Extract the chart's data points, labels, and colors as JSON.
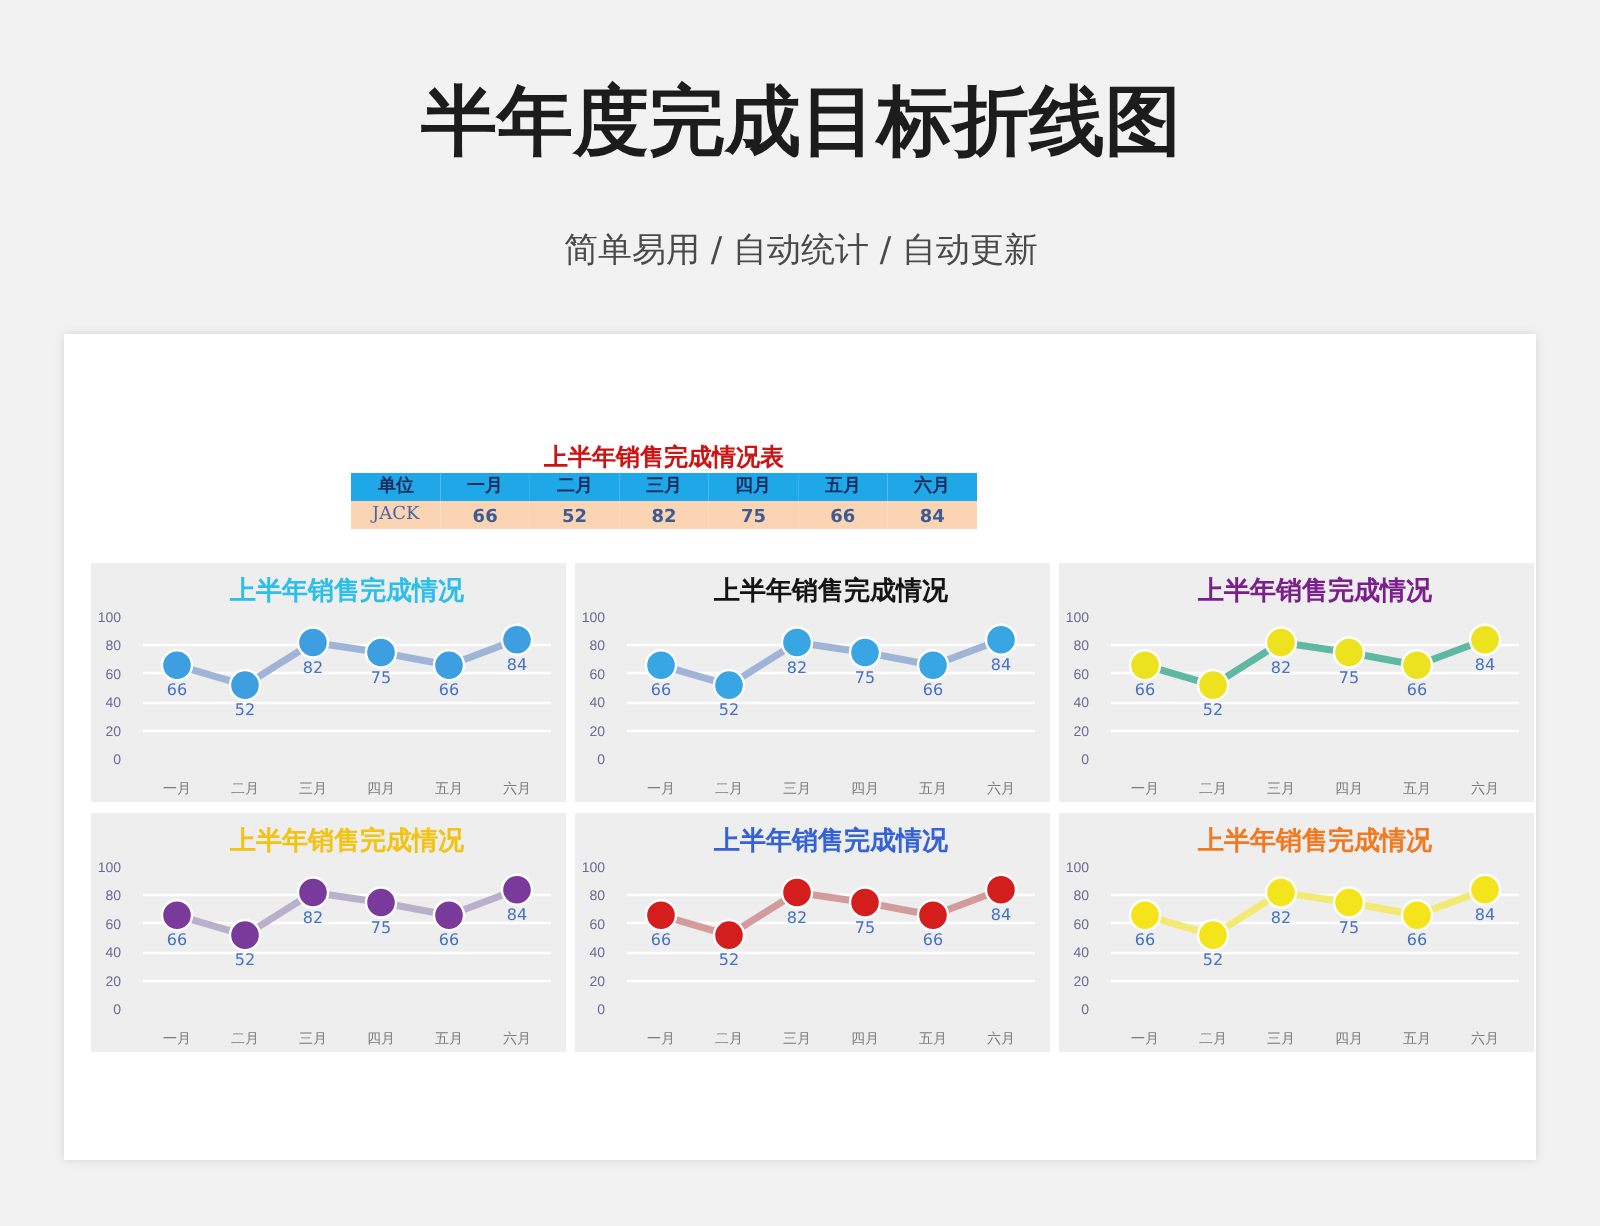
{
  "chart_data": [
    {
      "type": "other",
      "title": "半年度完成目标折线图",
      "subtitle": "简单易用 / 自动统计 / 自动更新"
    },
    {
      "type": "other",
      "title": "上半年销售完成情况表",
      "annotations": [
        "单位"
      ],
      "categories": [
        "一月",
        "二月",
        "三月",
        "四月",
        "五月",
        "六月"
      ],
      "series": [
        {
          "name": "JACK",
          "values": [
            66,
            52,
            82,
            75,
            66,
            84
          ]
        }
      ],
      "data_labels": true
    },
    {
      "type": "line",
      "title": "上半年销售完成情况",
      "categories": [
        "一月",
        "二月",
        "三月",
        "四月",
        "五月",
        "六月"
      ],
      "series": [
        {
          "color": "#9fb4d6",
          "colors": [
            "#3d9fe0",
            "#3d9fe0",
            "#3d9fe0",
            "#3d9fe0",
            "#3d9fe0",
            "#3d9fe0"
          ],
          "values": [
            66,
            52,
            82,
            75,
            66,
            84
          ]
        }
      ],
      "ylim": [
        0,
        100
      ],
      "yticks": [
        0,
        20,
        40,
        60,
        80,
        100
      ],
      "grid": "y",
      "marker": "circle",
      "data_labels": true
    },
    {
      "type": "line",
      "title": "上半年销售完成情况",
      "categories": [
        "一月",
        "二月",
        "三月",
        "四月",
        "五月",
        "六月"
      ],
      "series": [
        {
          "color": "#9fb4d6",
          "colors": [
            "#38a6e2",
            "#38a6e2",
            "#38a6e2",
            "#38a6e2",
            "#38a6e2",
            "#38a6e2"
          ],
          "values": [
            66,
            52,
            82,
            75,
            66,
            84
          ]
        }
      ],
      "ylim": [
        0,
        100
      ],
      "yticks": [
        0,
        20,
        40,
        60,
        80,
        100
      ],
      "grid": "y",
      "marker": "circle",
      "data_labels": true
    },
    {
      "type": "line",
      "title": "上半年销售完成情况",
      "categories": [
        "一月",
        "二月",
        "三月",
        "四月",
        "五月",
        "六月"
      ],
      "series": [
        {
          "color": "#5fb8a2",
          "colors": [
            "#ece21e",
            "#ece21e",
            "#ece21e",
            "#ece21e",
            "#ece21e",
            "#ece21e"
          ],
          "values": [
            66,
            52,
            82,
            75,
            66,
            84
          ]
        }
      ],
      "ylim": [
        0,
        100
      ],
      "yticks": [
        0,
        20,
        40,
        60,
        80,
        100
      ],
      "grid": "y",
      "marker": "circle",
      "data_labels": true
    },
    {
      "type": "line",
      "title": "上半年销售完成情况",
      "categories": [
        "一月",
        "二月",
        "三月",
        "四月",
        "五月",
        "六月"
      ],
      "series": [
        {
          "color": "#b9b1cc",
          "colors": [
            "#7a3a9c",
            "#7a3a9c",
            "#7a3a9c",
            "#7a3a9c",
            "#7a3a9c",
            "#7a3a9c"
          ],
          "values": [
            66,
            52,
            82,
            75,
            66,
            84
          ]
        }
      ],
      "ylim": [
        0,
        100
      ],
      "yticks": [
        0,
        20,
        40,
        60,
        80,
        100
      ],
      "grid": "y",
      "marker": "circle",
      "data_labels": true
    },
    {
      "type": "line",
      "title": "上半年销售完成情况",
      "categories": [
        "一月",
        "二月",
        "三月",
        "四月",
        "五月",
        "六月"
      ],
      "series": [
        {
          "color": "#d39c9c",
          "colors": [
            "#d41e1e",
            "#d41e1e",
            "#d41e1e",
            "#d41e1e",
            "#d41e1e",
            "#d41e1e"
          ],
          "values": [
            66,
            52,
            82,
            75,
            66,
            84
          ]
        }
      ],
      "ylim": [
        0,
        100
      ],
      "yticks": [
        0,
        20,
        40,
        60,
        80,
        100
      ],
      "grid": "y",
      "marker": "circle",
      "data_labels": true
    },
    {
      "type": "line",
      "title": "上半年销售完成情况",
      "categories": [
        "一月",
        "二月",
        "三月",
        "四月",
        "五月",
        "六月"
      ],
      "series": [
        {
          "color": "#f2ea72",
          "colors": [
            "#f4e41c",
            "#f4e41c",
            "#f4e41c",
            "#f4e41c",
            "#f4e41c",
            "#f4e41c"
          ],
          "values": [
            66,
            52,
            82,
            75,
            66,
            84
          ]
        }
      ],
      "ylim": [
        0,
        100
      ],
      "yticks": [
        0,
        20,
        40,
        60,
        80,
        100
      ],
      "grid": "y",
      "marker": "circle",
      "data_labels": true
    }
  ]
}
